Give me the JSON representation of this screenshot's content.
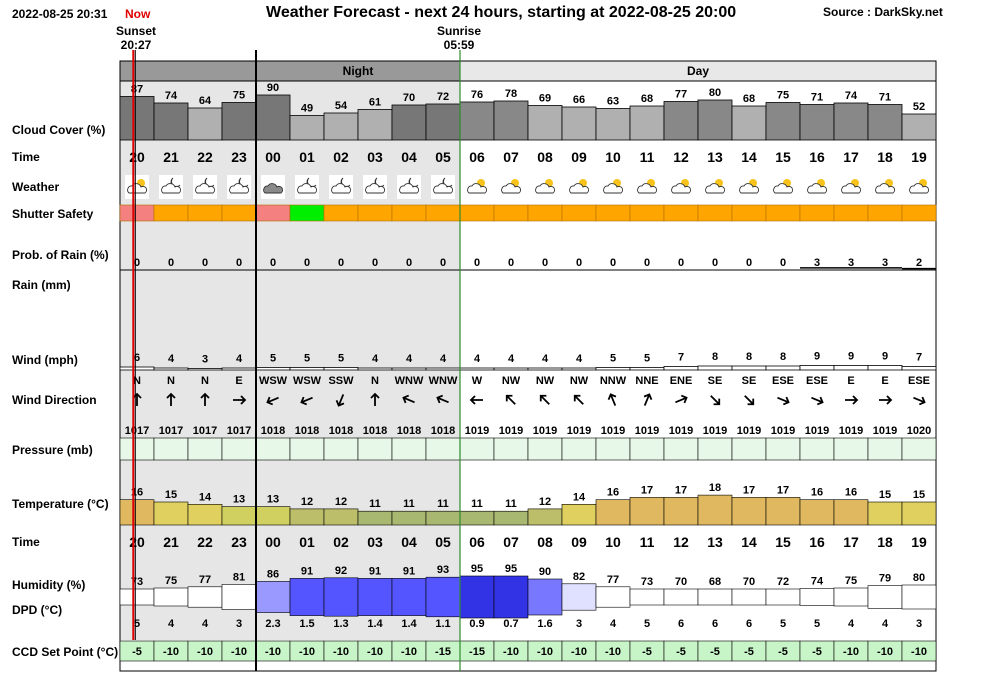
{
  "header": {
    "datetime": "2022-08-25 20:31",
    "now_label": "Now",
    "title": "Weather Forecast - next 24 hours, starting at 2022-08-25 20:00",
    "source": "Source : DarkSky.net"
  },
  "sun": {
    "sunset_label": "Sunset",
    "sunset_time": "20:27",
    "sunrise_label": "Sunrise",
    "sunrise_time": "05:59"
  },
  "periods": {
    "night": "Night",
    "day": "Day"
  },
  "row_labels": {
    "cloud": "Cloud Cover (%)",
    "time": "Time",
    "weather": "Weather",
    "shutter": "Shutter Safety",
    "prob_rain": "Prob. of Rain (%)",
    "rain": "Rain (mm)",
    "wind": "Wind (mph)",
    "wind_dir": "Wind Direction",
    "pressure": "Pressure (mb)",
    "temperature": "Temperature (°C)",
    "time2": "Time",
    "humidity": "Humidity (%)",
    "dpd": "DPD (°C)",
    "ccd": "CCD Set Point (°C)"
  },
  "colors": {
    "night_bg": "#e6e6e6",
    "night_header": "#999999",
    "cloud_bar_night": "#777777",
    "cloud_bar_day_dark": "#888888",
    "cloud_bar_light": "#b0b0b0",
    "now_line": "#e00000",
    "sunrise_line": "#2e8b2e",
    "shutter_green": "#00ee00",
    "shutter_red": "#f58080",
    "shutter_orange": "#ffa500",
    "pressure_bg": "#e8f8e8",
    "ccd_bg": "#c8f5c8"
  },
  "chart_data": {
    "type": "table",
    "hours": [
      "20",
      "21",
      "22",
      "23",
      "00",
      "01",
      "02",
      "03",
      "04",
      "05",
      "06",
      "07",
      "08",
      "09",
      "10",
      "11",
      "12",
      "13",
      "14",
      "15",
      "16",
      "17",
      "18",
      "19"
    ],
    "is_night": [
      true,
      true,
      true,
      true,
      true,
      true,
      true,
      true,
      true,
      true,
      false,
      false,
      false,
      false,
      false,
      false,
      false,
      false,
      false,
      false,
      false,
      false,
      false,
      false
    ],
    "cloud_cover": [
      87,
      74,
      64,
      75,
      90,
      49,
      54,
      61,
      70,
      72,
      76,
      78,
      69,
      66,
      63,
      68,
      77,
      80,
      68,
      75,
      71,
      74,
      71,
      52
    ],
    "weather_icon": [
      "partly-cloudy-day-icon",
      "partly-cloudy-night-icon",
      "partly-cloudy-night-icon",
      "partly-cloudy-night-icon",
      "cloudy-icon",
      "partly-cloudy-night-icon",
      "partly-cloudy-night-icon",
      "partly-cloudy-night-icon",
      "partly-cloudy-night-icon",
      "partly-cloudy-night-icon",
      "partly-cloudy-day-icon",
      "partly-cloudy-day-icon",
      "partly-cloudy-day-icon",
      "partly-cloudy-day-icon",
      "partly-cloudy-day-icon",
      "partly-cloudy-day-icon",
      "partly-cloudy-day-icon",
      "partly-cloudy-day-icon",
      "partly-cloudy-day-icon",
      "partly-cloudy-day-icon",
      "partly-cloudy-day-icon",
      "partly-cloudy-day-icon",
      "partly-cloudy-day-icon",
      "partly-cloudy-day-icon"
    ],
    "shutter_safety": [
      "red",
      "orange",
      "orange",
      "orange",
      "red",
      "green",
      "orange",
      "orange",
      "orange",
      "orange",
      "orange",
      "orange",
      "orange",
      "orange",
      "orange",
      "orange",
      "orange",
      "orange",
      "orange",
      "orange",
      "orange",
      "orange",
      "orange",
      "orange"
    ],
    "prob_rain": [
      0,
      0,
      0,
      0,
      0,
      0,
      0,
      0,
      0,
      0,
      0,
      0,
      0,
      0,
      0,
      0,
      0,
      0,
      0,
      0,
      3,
      3,
      3,
      2
    ],
    "rain_mm": [
      0,
      0,
      0,
      0,
      0,
      0,
      0,
      0,
      0,
      0,
      0,
      0,
      0,
      0,
      0,
      0,
      0,
      0,
      0,
      0,
      0,
      0,
      0,
      0
    ],
    "wind_mph": [
      6,
      4,
      3,
      4,
      5,
      5,
      5,
      4,
      4,
      4,
      4,
      4,
      4,
      4,
      5,
      5,
      7,
      8,
      8,
      8,
      9,
      9,
      9,
      7
    ],
    "wind_dir": [
      "N",
      "N",
      "N",
      "E",
      "WSW",
      "WSW",
      "SSW",
      "N",
      "WNW",
      "WNW",
      "W",
      "NW",
      "NW",
      "NW",
      "NNW",
      "NNE",
      "ENE",
      "SE",
      "SE",
      "ESE",
      "ESE",
      "E",
      "E",
      "ESE"
    ],
    "wind_arrow_deg": [
      180,
      180,
      180,
      270,
      67.5,
      67.5,
      22.5,
      180,
      112.5,
      112.5,
      90,
      135,
      135,
      135,
      157.5,
      202.5,
      247.5,
      315,
      315,
      292.5,
      292.5,
      270,
      270,
      292.5
    ],
    "pressure_mb": [
      1017,
      1017,
      1017,
      1017,
      1018,
      1018,
      1018,
      1018,
      1018,
      1018,
      1019,
      1019,
      1019,
      1019,
      1019,
      1019,
      1019,
      1019,
      1019,
      1019,
      1019,
      1019,
      1019,
      1020
    ],
    "temperature_c": [
      16,
      15,
      14,
      13,
      13,
      12,
      12,
      11,
      11,
      11,
      11,
      11,
      12,
      14,
      16,
      17,
      17,
      18,
      17,
      17,
      16,
      16,
      15,
      15
    ],
    "humidity_pct": [
      73,
      75,
      77,
      81,
      86,
      91,
      92,
      91,
      91,
      93,
      95,
      95,
      90,
      82,
      77,
      73,
      70,
      68,
      70,
      72,
      74,
      75,
      79,
      80
    ],
    "dpd_c": [
      "5",
      "4",
      "4",
      "3",
      "2.3",
      "1.5",
      "1.3",
      "1.4",
      "1.4",
      "1.1",
      "0.9",
      "0.7",
      "1.6",
      "3",
      "4",
      "5",
      "6",
      "6",
      "6",
      "5",
      "5",
      "4",
      "4",
      "3"
    ],
    "ccd_set_point_c": [
      -5,
      -10,
      -10,
      -10,
      -10,
      -10,
      -10,
      -10,
      -10,
      -15,
      -15,
      -10,
      -10,
      -10,
      -10,
      -5,
      -5,
      -5,
      -5,
      -5,
      -5,
      -10,
      -10,
      -10
    ]
  }
}
